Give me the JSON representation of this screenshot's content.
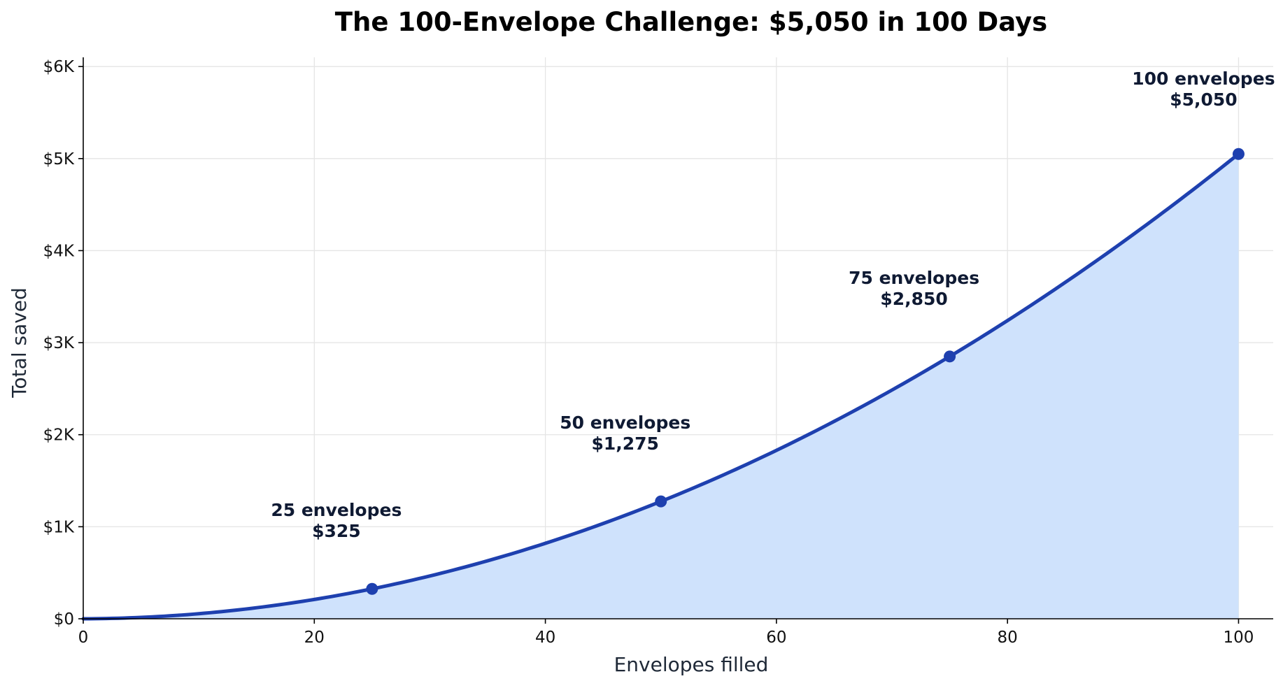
{
  "chart_data": {
    "type": "area",
    "title": "The 100-Envelope Challenge: $5,050 in 100 Days",
    "xlabel": "Envelopes filled",
    "ylabel": "Total saved",
    "xlim": [
      0,
      103
    ],
    "ylim": [
      0,
      6100
    ],
    "x_ticks": [
      0,
      20,
      40,
      60,
      80,
      100
    ],
    "x_tick_labels": [
      "0",
      "20",
      "40",
      "60",
      "80",
      "100"
    ],
    "y_ticks": [
      0,
      1000,
      2000,
      3000,
      4000,
      5000,
      6000
    ],
    "y_tick_labels": [
      "$0",
      "$1K",
      "$2K",
      "$3K",
      "$4K",
      "$5K",
      "$6K"
    ],
    "grid": true,
    "series": [
      {
        "formula": "y = x(x+1)/2",
        "x": [
          0,
          5,
          10,
          15,
          20,
          25,
          30,
          35,
          40,
          45,
          50,
          55,
          60,
          65,
          70,
          75,
          80,
          85,
          90,
          95,
          100
        ],
        "y": [
          0,
          15,
          55,
          120,
          210,
          325,
          465,
          630,
          820,
          1035,
          1275,
          1540,
          1830,
          2145,
          2485,
          2850,
          3240,
          3655,
          4095,
          4560,
          5050
        ]
      }
    ],
    "markers": [
      {
        "x": 25,
        "y": 325,
        "line1": "25 envelopes",
        "line2": "$325"
      },
      {
        "x": 50,
        "y": 1275,
        "line1": "50 envelopes",
        "line2": "$1,275"
      },
      {
        "x": 75,
        "y": 2850,
        "line1": "75 envelopes",
        "line2": "$2,850"
      },
      {
        "x": 100,
        "y": 5050,
        "line1": "100 envelopes",
        "line2": "$5,050"
      }
    ],
    "colors": {
      "line": "#1e40af",
      "fill": "#cfe2fc",
      "marker": "#1e40af",
      "annotation": "#0f1a33"
    }
  }
}
